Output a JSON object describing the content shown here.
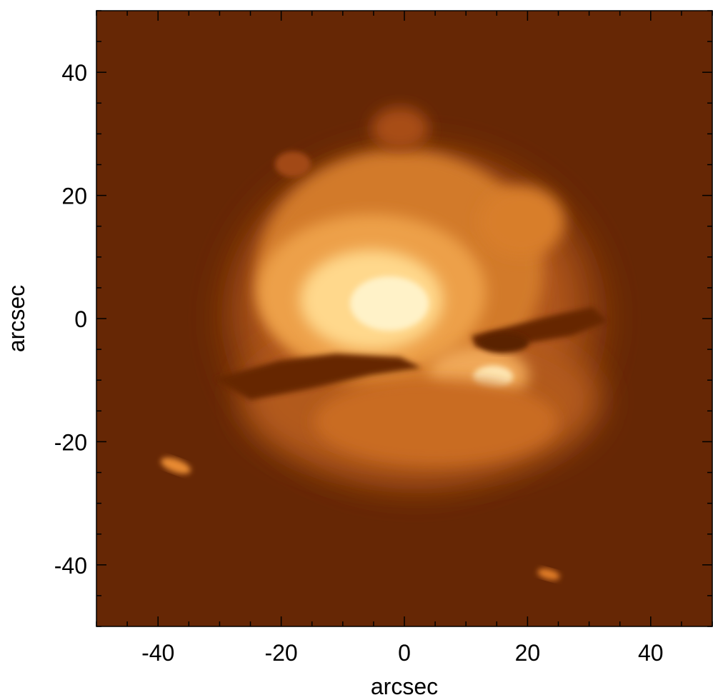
{
  "image": {
    "description_colormap": "orange-brown intensity map",
    "background_color": "#662705",
    "bright_color": "#fff2c8",
    "mid_color": "#e0801e"
  },
  "axes": {
    "xlabel": "arcsec",
    "ylabel": "arcsec",
    "xlim": [
      -50,
      50
    ],
    "ylim": [
      -50,
      50
    ],
    "x_ticks": [
      -40,
      -20,
      0,
      20,
      40
    ],
    "y_ticks": [
      40,
      20,
      0,
      -20,
      -40
    ],
    "x_tick_labels": [
      "-40",
      "-20",
      "0",
      "20",
      "40"
    ],
    "y_tick_labels": [
      "40",
      "20",
      "0",
      "-20",
      "-40"
    ]
  }
}
